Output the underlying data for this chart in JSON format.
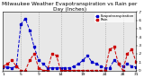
{
  "title": "Milwaukee Weather Evapotranspiration vs Rain per Day (Inches)",
  "ylim": [
    0,
    0.7
  ],
  "xlim": [
    1,
    31
  ],
  "et_color": "#0000cc",
  "rain_color": "#cc0000",
  "et_label": "Evapotranspiration",
  "rain_label": "Rain",
  "days": [
    1,
    2,
    3,
    4,
    5,
    6,
    7,
    8,
    9,
    10,
    11,
    12,
    13,
    14,
    15,
    16,
    17,
    18,
    19,
    20,
    21,
    22,
    23,
    24,
    25,
    26,
    27,
    28,
    29,
    30,
    31
  ],
  "et_values": [
    0.04,
    0.04,
    0.03,
    0.05,
    0.55,
    0.62,
    0.48,
    0.28,
    0.12,
    0.08,
    0.03,
    0.03,
    0.03,
    0.03,
    0.03,
    0.03,
    0.05,
    0.08,
    0.12,
    0.18,
    0.1,
    0.08,
    0.05,
    0.03,
    0.03,
    0.12,
    0.08,
    0.05,
    0.08,
    0.05,
    0.04
  ],
  "rain_values": [
    0.05,
    0.08,
    0.12,
    0.05,
    0.0,
    0.0,
    0.12,
    0.2,
    0.03,
    0.0,
    0.0,
    0.2,
    0.18,
    0.0,
    0.0,
    0.0,
    0.0,
    0.0,
    0.0,
    0.0,
    0.0,
    0.0,
    0.0,
    0.0,
    0.25,
    0.28,
    0.08,
    0.0,
    0.2,
    0.25,
    0.1
  ],
  "vlines": [
    5,
    9,
    14,
    19,
    24,
    28
  ],
  "yticks": [
    0.0,
    0.1,
    0.2,
    0.3,
    0.4,
    0.5,
    0.6,
    0.7
  ],
  "ytick_labels": [
    "0",
    ".1",
    ".2",
    ".3",
    ".4",
    ".5",
    ".6",
    ".7"
  ],
  "xtick_positions": [
    1,
    5,
    9,
    14,
    19,
    24,
    28,
    31
  ],
  "xtick_labels": [
    "1",
    "5",
    "9",
    "14",
    "19",
    "24",
    "28",
    "31"
  ],
  "plot_bg": "#e8e8e8",
  "title_fontsize": 4.2,
  "tick_fontsize": 3.2,
  "legend_fontsize": 2.8,
  "linewidth": 0.7,
  "markersize": 1.5
}
